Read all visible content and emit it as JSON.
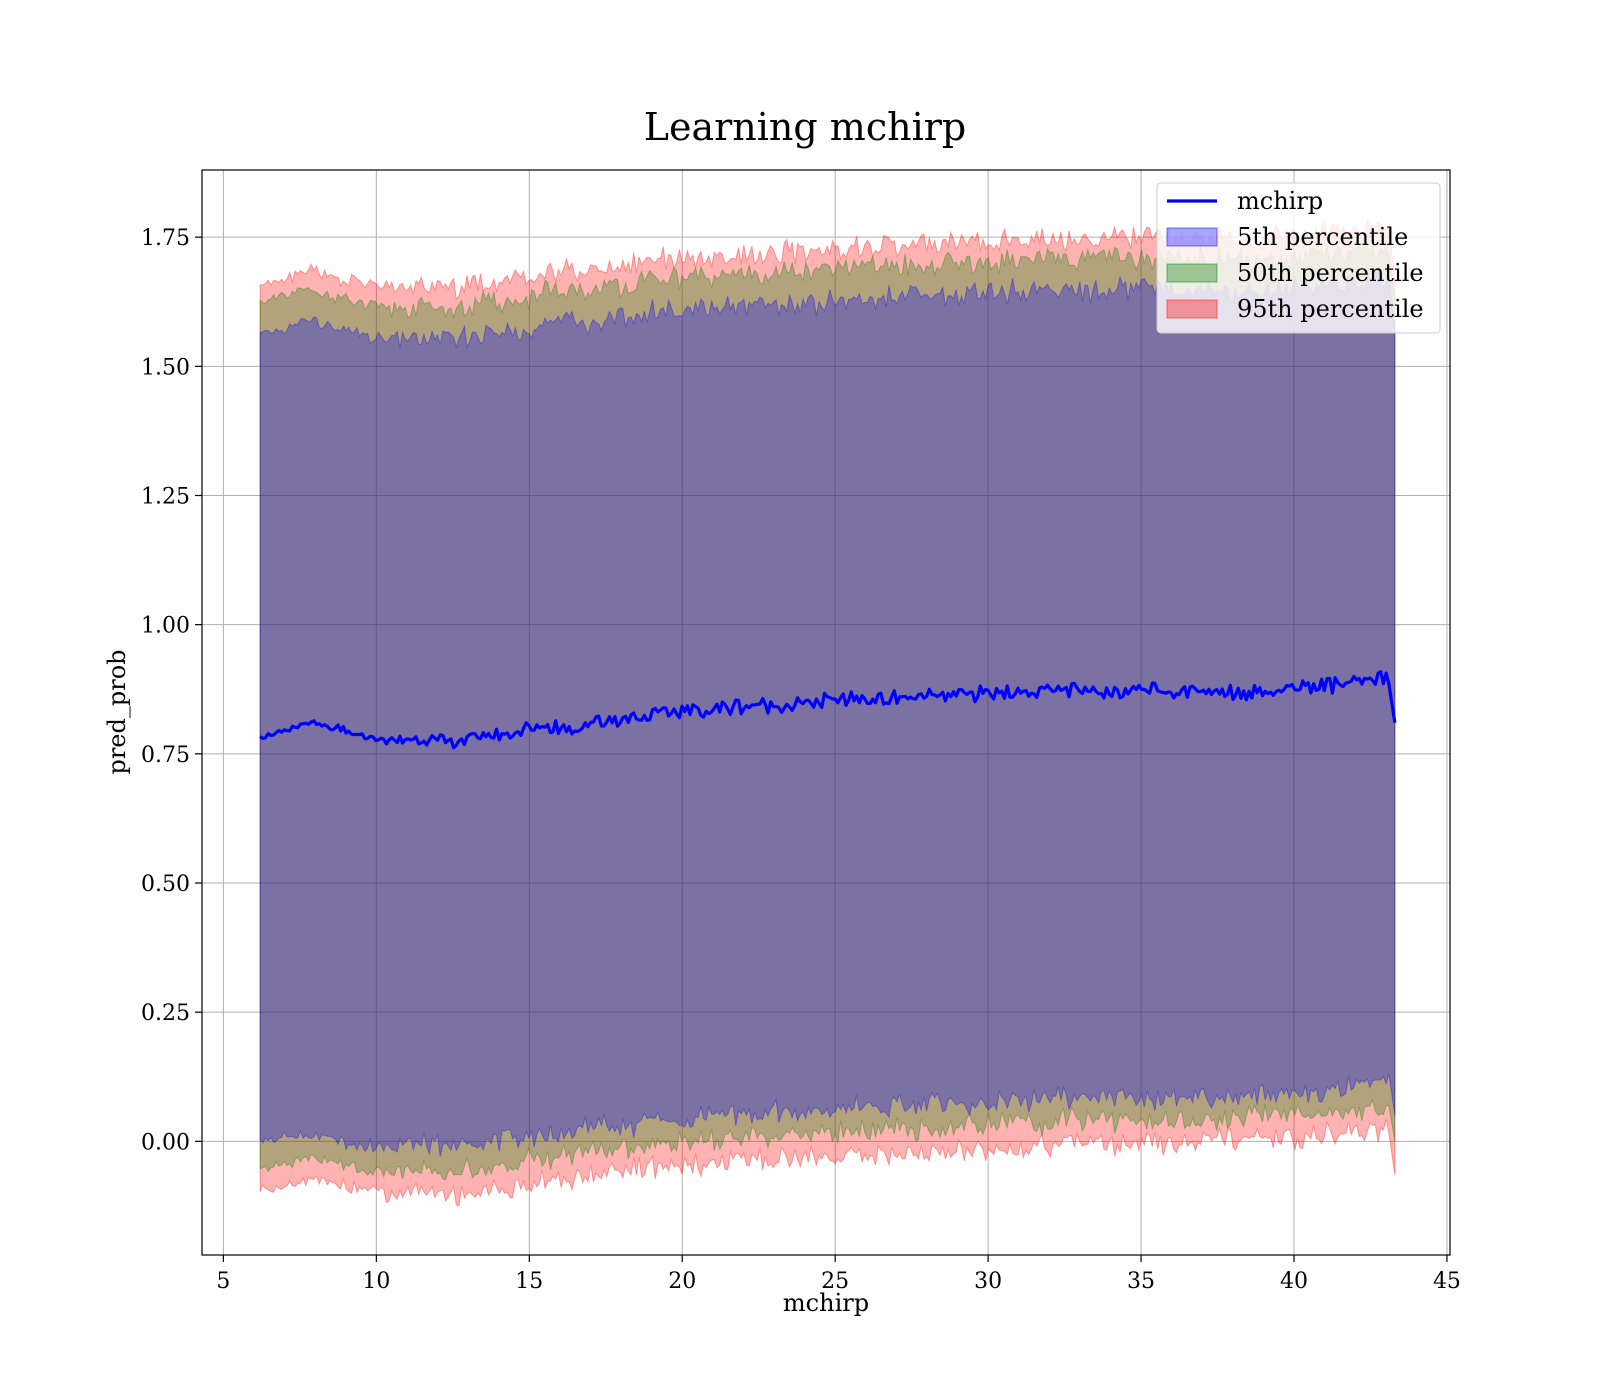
{
  "chart_data": {
    "type": "line",
    "title": "Learning mchirp",
    "xlabel": "mchirp",
    "ylabel": "pred_prob",
    "xlim": [
      4.3,
      45.1
    ],
    "ylim": [
      -0.22,
      1.88
    ],
    "x_ticks": [
      5,
      10,
      15,
      20,
      25,
      30,
      35,
      40,
      45
    ],
    "x_tick_labels": [
      "5",
      "10",
      "15",
      "20",
      "25",
      "30",
      "35",
      "40",
      "45"
    ],
    "y_ticks": [
      0.0,
      0.25,
      0.5,
      0.75,
      1.0,
      1.25,
      1.5,
      1.75
    ],
    "y_tick_labels": [
      "0.00",
      "0.25",
      "0.50",
      "0.75",
      "1.00",
      "1.25",
      "1.50",
      "1.75"
    ],
    "grid": true,
    "legend_position": "top-right",
    "x_range": [
      6.2,
      43.3
    ],
    "mean_line": {
      "name": "mchirp",
      "color": "#0000ff",
      "x": [
        6.2,
        7.0,
        7.8,
        8.5,
        9.5,
        10.5,
        11.5,
        12.5,
        13.5,
        14.5,
        15.5,
        16.5,
        17.5,
        18.5,
        19.5,
        20.5,
        21.5,
        22.5,
        23.5,
        24.5,
        25.5,
        26.5,
        27.5,
        28.5,
        29.5,
        30.5,
        31.5,
        32.5,
        33.5,
        34.5,
        35.5,
        36.5,
        37.5,
        38.5,
        39.5,
        40.5,
        41.5,
        42.5,
        43.1,
        43.3
      ],
      "y": [
        0.785,
        0.79,
        0.81,
        0.8,
        0.785,
        0.775,
        0.78,
        0.77,
        0.785,
        0.79,
        0.805,
        0.8,
        0.815,
        0.82,
        0.83,
        0.835,
        0.84,
        0.845,
        0.845,
        0.85,
        0.855,
        0.855,
        0.86,
        0.86,
        0.865,
        0.87,
        0.87,
        0.875,
        0.87,
        0.875,
        0.875,
        0.87,
        0.875,
        0.87,
        0.875,
        0.88,
        0.885,
        0.89,
        0.895,
        0.81
      ]
    },
    "series": [
      {
        "name": "5th percentile",
        "color": "#0000ff",
        "lower": [
          0.005,
          0.01,
          0.015,
          0.005,
          -0.005,
          -0.01,
          -0.005,
          -0.01,
          0.0,
          0.005,
          0.02,
          0.025,
          0.03,
          0.035,
          0.045,
          0.045,
          0.05,
          0.055,
          0.055,
          0.06,
          0.065,
          0.065,
          0.07,
          0.07,
          0.075,
          0.08,
          0.08,
          0.085,
          0.085,
          0.085,
          0.085,
          0.085,
          0.09,
          0.09,
          0.095,
          0.1,
          0.105,
          0.11,
          0.115,
          0.05
        ],
        "upper": [
          1.56,
          1.57,
          1.59,
          1.575,
          1.56,
          1.55,
          1.555,
          1.55,
          1.56,
          1.565,
          1.58,
          1.585,
          1.59,
          1.6,
          1.61,
          1.61,
          1.615,
          1.62,
          1.62,
          1.625,
          1.63,
          1.63,
          1.635,
          1.635,
          1.64,
          1.645,
          1.645,
          1.65,
          1.645,
          1.65,
          1.65,
          1.645,
          1.65,
          1.645,
          1.65,
          1.655,
          1.66,
          1.665,
          1.67,
          1.57
        ]
      },
      {
        "name": "50th percentile",
        "color": "#008000",
        "lower": [
          -0.055,
          -0.045,
          -0.03,
          -0.04,
          -0.055,
          -0.06,
          -0.055,
          -0.06,
          -0.05,
          -0.045,
          -0.03,
          -0.025,
          -0.015,
          -0.01,
          0.0,
          0.0,
          0.005,
          0.01,
          0.01,
          0.015,
          0.02,
          0.02,
          0.025,
          0.025,
          0.03,
          0.035,
          0.035,
          0.04,
          0.04,
          0.04,
          0.04,
          0.04,
          0.045,
          0.045,
          0.05,
          0.055,
          0.06,
          0.065,
          0.07,
          0.0
        ],
        "upper": [
          1.625,
          1.635,
          1.65,
          1.635,
          1.62,
          1.61,
          1.615,
          1.61,
          1.62,
          1.625,
          1.64,
          1.645,
          1.65,
          1.66,
          1.67,
          1.67,
          1.675,
          1.68,
          1.68,
          1.685,
          1.69,
          1.69,
          1.695,
          1.695,
          1.7,
          1.705,
          1.705,
          1.71,
          1.705,
          1.71,
          1.71,
          1.705,
          1.71,
          1.705,
          1.71,
          1.715,
          1.72,
          1.725,
          1.73,
          1.63
        ]
      },
      {
        "name": "95th percentile",
        "color": "#ff0000",
        "lower": [
          -0.095,
          -0.085,
          -0.07,
          -0.08,
          -0.095,
          -0.1,
          -0.095,
          -0.105,
          -0.095,
          -0.09,
          -0.075,
          -0.07,
          -0.06,
          -0.055,
          -0.045,
          -0.045,
          -0.04,
          -0.035,
          -0.035,
          -0.03,
          -0.025,
          -0.025,
          -0.02,
          -0.02,
          -0.015,
          -0.01,
          -0.01,
          -0.005,
          -0.005,
          -0.005,
          -0.005,
          -0.005,
          0.0,
          0.0,
          0.005,
          0.01,
          0.015,
          0.02,
          0.025,
          -0.065
        ],
        "upper": [
          1.66,
          1.67,
          1.69,
          1.675,
          1.66,
          1.65,
          1.655,
          1.65,
          1.66,
          1.665,
          1.68,
          1.685,
          1.69,
          1.7,
          1.71,
          1.71,
          1.715,
          1.72,
          1.72,
          1.725,
          1.73,
          1.73,
          1.735,
          1.735,
          1.74,
          1.745,
          1.745,
          1.75,
          1.745,
          1.75,
          1.75,
          1.745,
          1.75,
          1.745,
          1.75,
          1.755,
          1.76,
          1.765,
          1.77,
          1.67
        ]
      }
    ]
  }
}
